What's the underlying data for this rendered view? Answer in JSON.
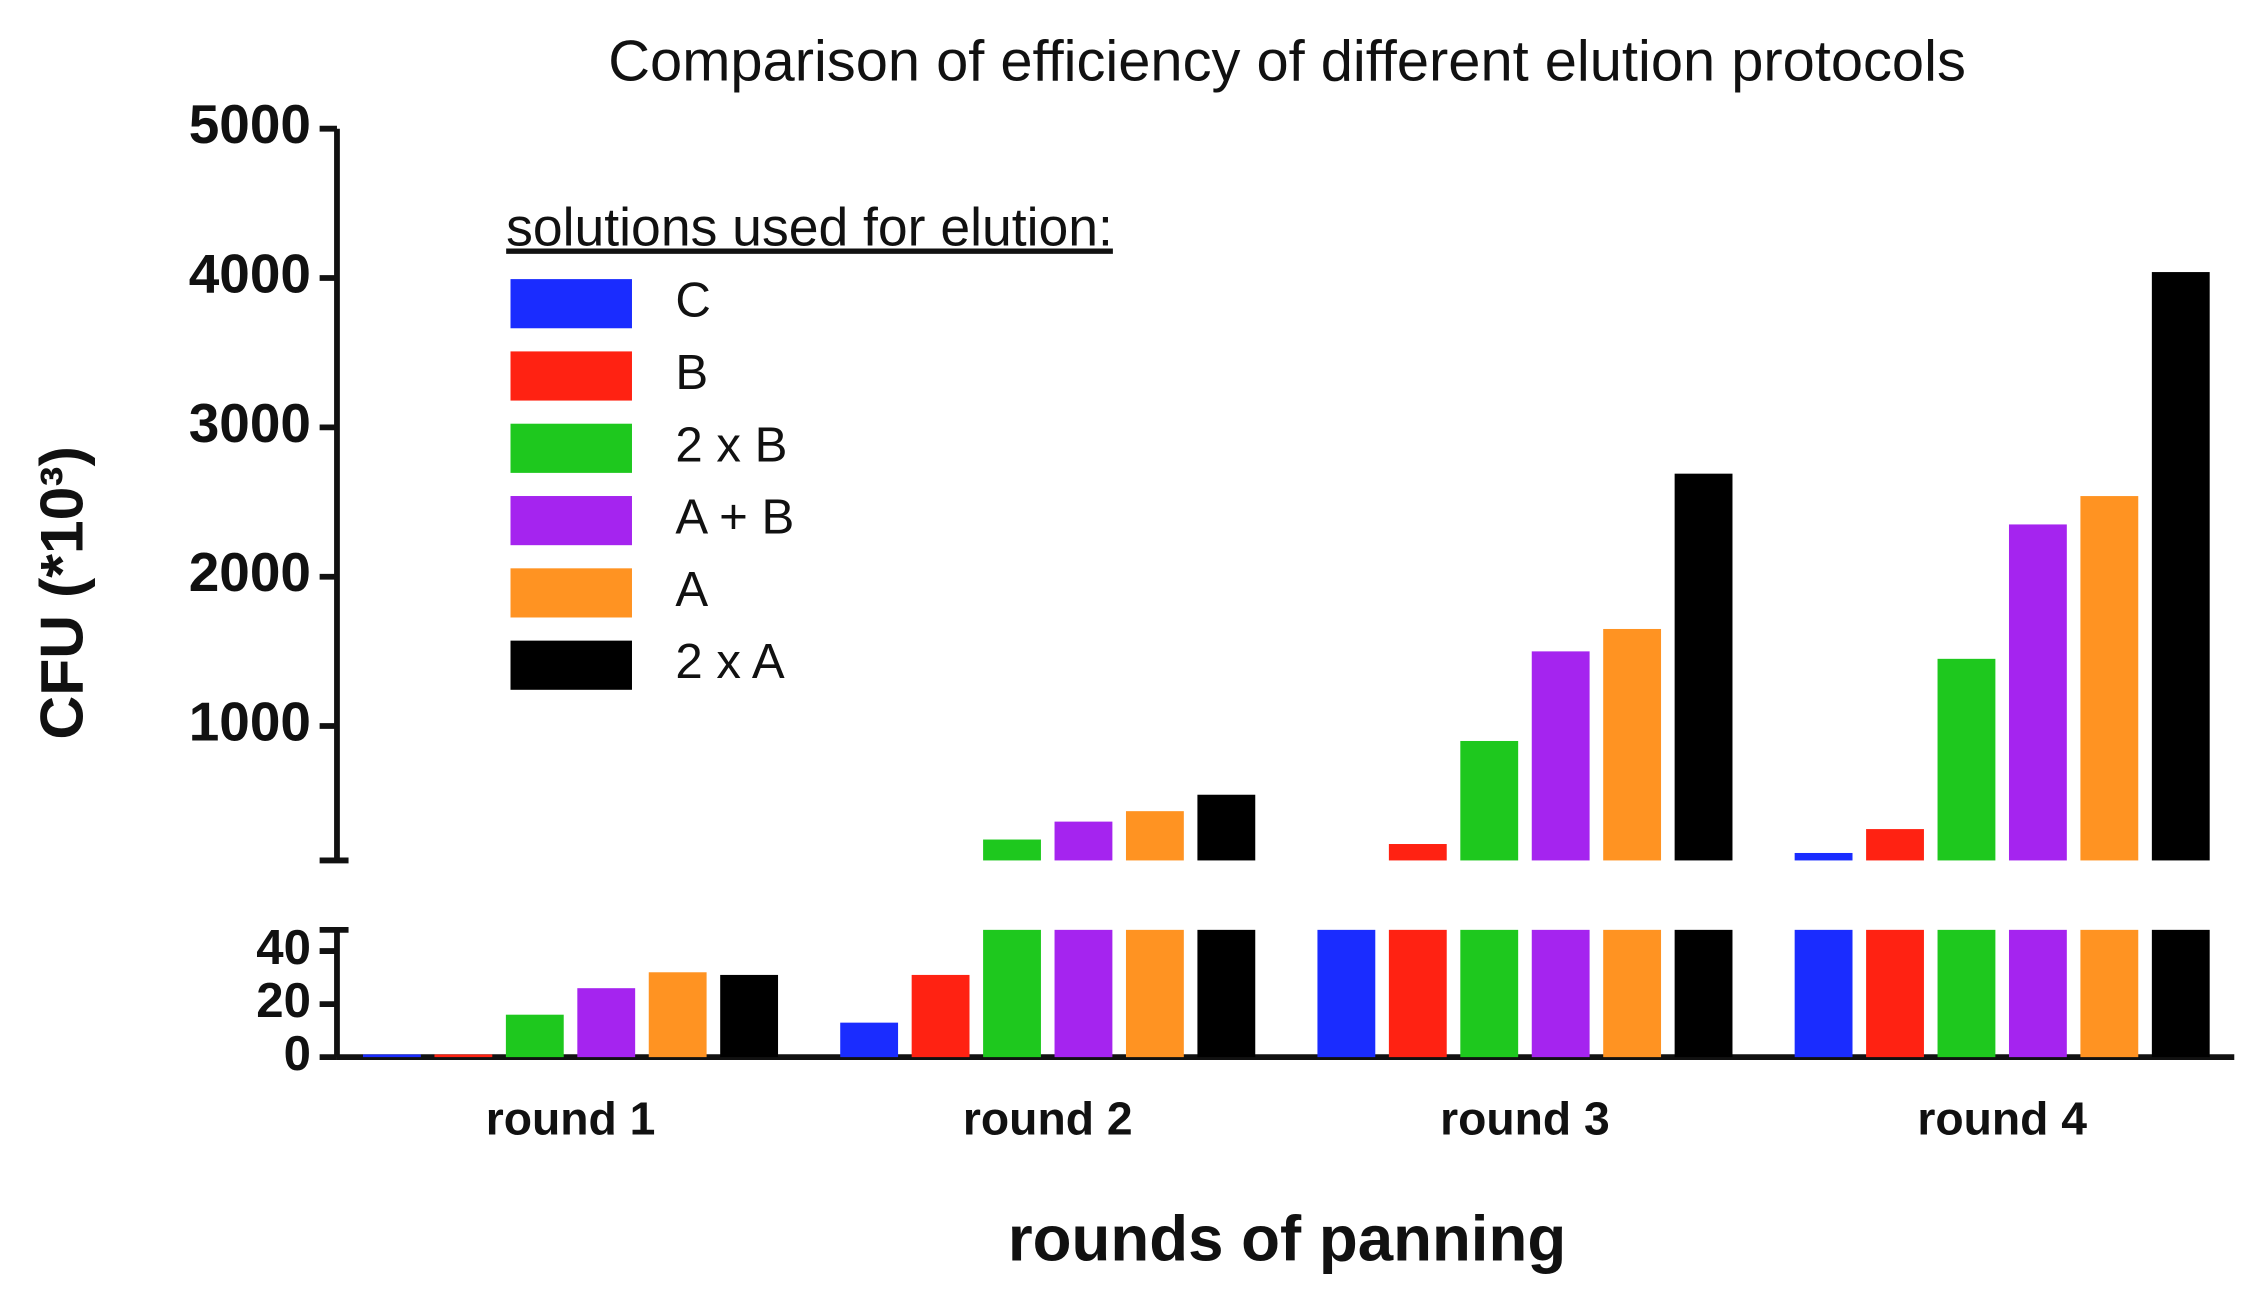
{
  "chart_data": {
    "type": "bar",
    "title": "Comparison of efficiency of different elution protocols",
    "x_label": "rounds of panning",
    "y_label": "CFU (*10³)",
    "legend_title": "solutions used for elution:",
    "legend": "upper left",
    "categories": [
      "round 1",
      "round 2",
      "round 3",
      "round 4"
    ],
    "series": [
      {
        "name": "C",
        "color": "#1a2cff",
        "values": [
          1,
          13,
          70,
          150
        ]
      },
      {
        "name": "B",
        "color": "#ff2212",
        "values": [
          1,
          31,
          210,
          310
        ]
      },
      {
        "name": "2 x B",
        "color": "#1ec81e",
        "values": [
          16,
          240,
          900,
          1450
        ]
      },
      {
        "name": "A + B",
        "color": "#a524ef",
        "values": [
          26,
          360,
          1500,
          2350
        ]
      },
      {
        "name": "A",
        "color": "#ff9322",
        "values": [
          32,
          430,
          1650,
          2540
        ]
      },
      {
        "name": "2 x A",
        "color": "#000000",
        "values": [
          31,
          540,
          2690,
          4040
        ]
      }
    ],
    "y_segments": [
      {
        "ylim": [
          0,
          48
        ],
        "yticks": [
          0,
          20,
          40
        ]
      },
      {
        "ylim": [
          100,
          5000
        ],
        "yticks": [
          1000,
          2000,
          3000,
          4000,
          5000
        ]
      }
    ]
  }
}
